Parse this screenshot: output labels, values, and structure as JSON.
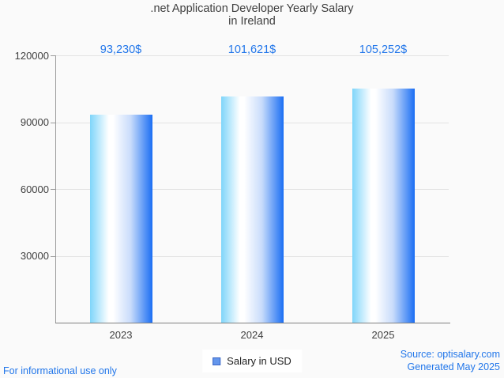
{
  "ui": {
    "title_line1": ".net Application Developer Yearly Salary",
    "title_line2": "in Ireland",
    "footer_left": "For informational use only",
    "footer_source": "Source: optisalary.com",
    "footer_generated": "Generated May 2025",
    "colors": {
      "accent_blue": "#2176ea",
      "bar_gradient_left": "#7fd5fa",
      "bar_gradient_mid": "#ffffff",
      "bar_gradient_right": "#1b6ef3",
      "legend_swatch": "#6496ec",
      "background": "#fafafa",
      "gridline": "#e3e3e3",
      "axis": "#8c8c8c",
      "text_dark": "#3f3f3f"
    }
  },
  "chart_data": {
    "type": "bar",
    "title": ".net Application Developer Yearly Salary in Ireland",
    "categories": [
      "2023",
      "2024",
      "2025"
    ],
    "values": [
      93230,
      101621,
      105252
    ],
    "value_labels": [
      "93,230$",
      "101,621$",
      "105,252$"
    ],
    "series_name": "Salary in USD",
    "legend": "Salary in USD",
    "legend_position": "bottom",
    "xlabel": "",
    "ylabel": "",
    "ylim": [
      0,
      120000
    ],
    "yticks": [
      30000,
      60000,
      90000,
      120000
    ],
    "grid": true
  }
}
